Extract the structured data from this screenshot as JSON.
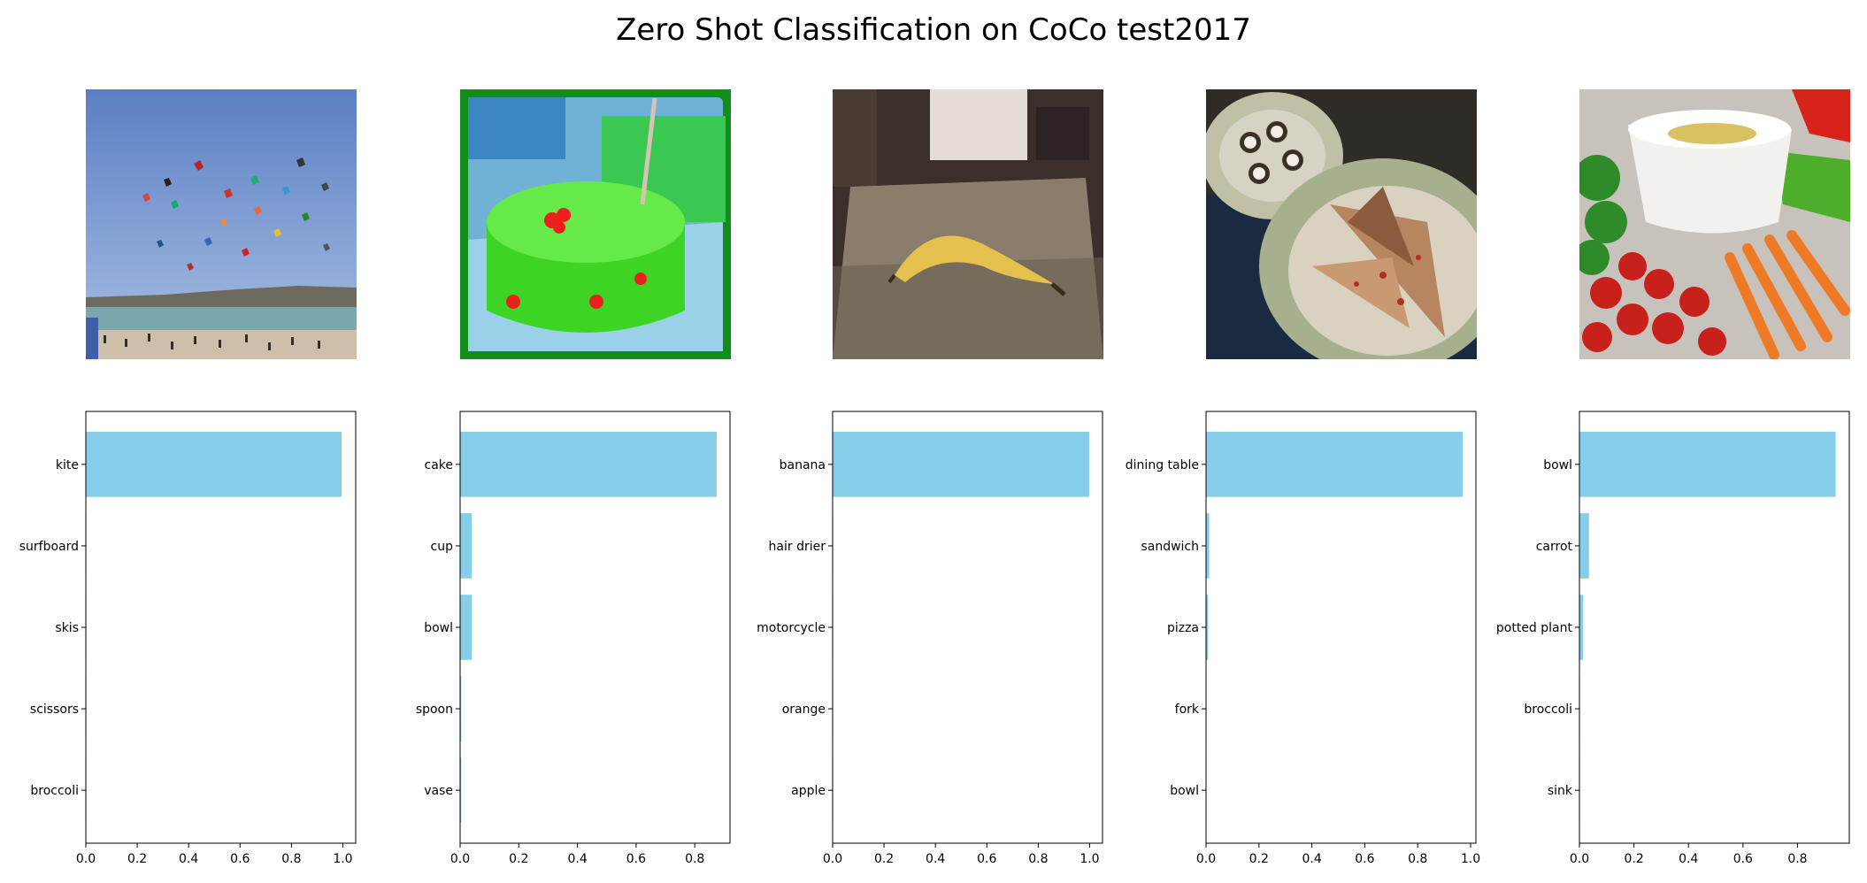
{
  "title": "Zero Shot Classification on CoCo test2017",
  "colors": {
    "bar": "#87ceeb",
    "axis": "#000000",
    "background": "#ffffff"
  },
  "images": [
    {
      "name": "kites-on-beach"
    },
    {
      "name": "green-cake"
    },
    {
      "name": "banana-on-bed"
    },
    {
      "name": "sushi-and-pizza-plates"
    },
    {
      "name": "vegetable-platter-with-bowl"
    }
  ],
  "chart_data": [
    {
      "type": "bar",
      "orientation": "horizontal",
      "categories": [
        "kite",
        "surfboard",
        "skis",
        "scissors",
        "broccoli"
      ],
      "values": [
        0.995,
        0.001,
        0.001,
        0.001,
        0.001
      ],
      "xlim": [
        0,
        1.05
      ],
      "xticks": [
        "0.0",
        "0.2",
        "0.4",
        "0.6",
        "0.8",
        "1.0"
      ],
      "grid": false
    },
    {
      "type": "bar",
      "orientation": "horizontal",
      "categories": [
        "cake",
        "cup",
        "bowl",
        "spoon",
        "vase"
      ],
      "values": [
        0.875,
        0.04,
        0.04,
        0.004,
        0.004
      ],
      "xlim": [
        0,
        0.92
      ],
      "xticks": [
        "0.0",
        "0.2",
        "0.4",
        "0.6",
        "0.8"
      ],
      "grid": false
    },
    {
      "type": "bar",
      "orientation": "horizontal",
      "categories": [
        "banana",
        "hair drier",
        "motorcycle",
        "orange",
        "apple"
      ],
      "values": [
        0.998,
        0.0005,
        0.0003,
        0.0002,
        0.0001
      ],
      "xlim": [
        0,
        1.05
      ],
      "xticks": [
        "0.0",
        "0.2",
        "0.4",
        "0.6",
        "0.8",
        "1.0"
      ],
      "grid": false
    },
    {
      "type": "bar",
      "orientation": "horizontal",
      "categories": [
        "dining table",
        "sandwich",
        "pizza",
        "fork",
        "bowl"
      ],
      "values": [
        0.97,
        0.012,
        0.008,
        0.001,
        0.001
      ],
      "xlim": [
        0,
        1.02
      ],
      "xticks": [
        "0.0",
        "0.2",
        "0.4",
        "0.6",
        "0.8",
        "1.0"
      ],
      "grid": false
    },
    {
      "type": "bar",
      "orientation": "horizontal",
      "categories": [
        "bowl",
        "carrot",
        "potted plant",
        "broccoli",
        "sink"
      ],
      "values": [
        0.94,
        0.035,
        0.013,
        0.002,
        0.001
      ],
      "xlim": [
        0,
        0.99
      ],
      "xticks": [
        "0.0",
        "0.2",
        "0.4",
        "0.6",
        "0.8"
      ],
      "grid": false
    }
  ]
}
